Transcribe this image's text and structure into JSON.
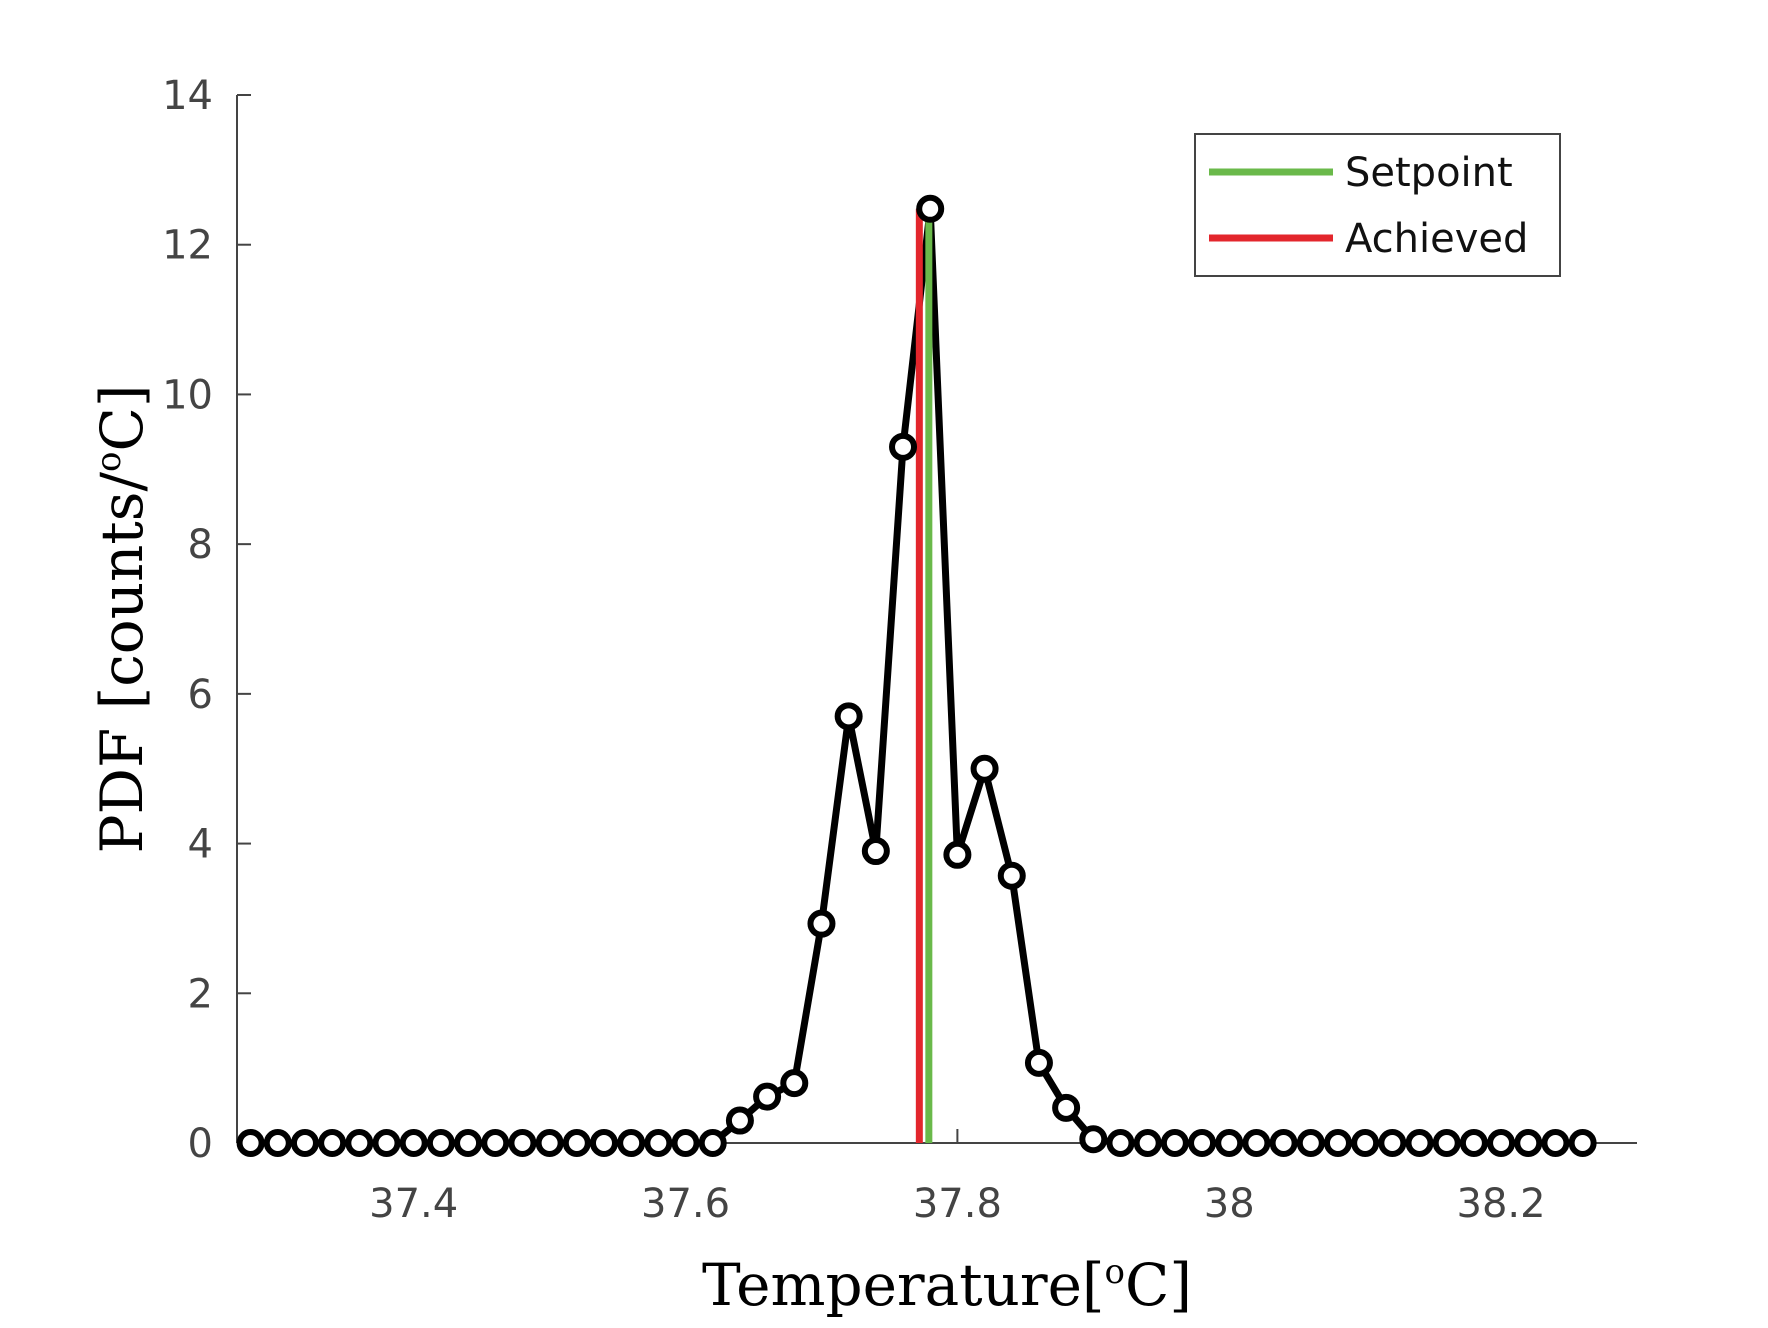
{
  "chart_data": {
    "type": "line",
    "xlabel": "Temperature[°C]",
    "xlabel_parts": {
      "pre": "Temperature[",
      "sup": "o",
      "post": "C]"
    },
    "ylabel": "PDF [counts/°C]",
    "ylabel_parts": {
      "pre": "PDF [counts/",
      "sup": "o",
      "post": "C]"
    },
    "xlim": [
      37.27,
      38.3
    ],
    "ylim": [
      0,
      14
    ],
    "xticks": [
      37.4,
      37.6,
      37.8,
      38.0,
      38.2
    ],
    "xtick_labels": [
      "37.4",
      "37.6",
      "37.8",
      "38",
      "38.2"
    ],
    "yticks": [
      0,
      2,
      4,
      6,
      8,
      10,
      12,
      14
    ],
    "ytick_labels": [
      "0",
      "2",
      "4",
      "6",
      "8",
      "10",
      "12",
      "14"
    ],
    "grid": false,
    "legend_placement": "top-right",
    "series": [
      {
        "style": "line-circle-markers",
        "color": "#000000",
        "x": [
          37.28,
          37.3,
          37.32,
          37.34,
          37.36,
          37.38,
          37.4,
          37.42,
          37.44,
          37.46,
          37.48,
          37.5,
          37.52,
          37.54,
          37.56,
          37.58,
          37.6,
          37.62,
          37.64,
          37.66,
          37.68,
          37.7,
          37.72,
          37.74,
          37.76,
          37.78,
          37.8,
          37.82,
          37.84,
          37.86,
          37.88,
          37.9,
          37.92,
          37.94,
          37.96,
          37.98,
          38.0,
          38.02,
          38.04,
          38.06,
          38.08,
          38.1,
          38.12,
          38.14,
          38.16,
          38.18,
          38.2,
          38.22,
          38.24,
          38.26
        ],
        "y": [
          0,
          0,
          0,
          0,
          0,
          0,
          0,
          0,
          0,
          0,
          0,
          0,
          0,
          0,
          0,
          0,
          0,
          0,
          0.3,
          0.62,
          0.8,
          2.93,
          5.7,
          3.9,
          9.3,
          12.48,
          3.85,
          5.0,
          3.57,
          1.07,
          0.47,
          0.05,
          0,
          0,
          0,
          0,
          0,
          0,
          0,
          0,
          0,
          0,
          0,
          0,
          0,
          0,
          0,
          0,
          0,
          0
        ]
      },
      {
        "name": "Setpoint",
        "style": "vertical-line",
        "color": "#6ab94a",
        "x": 37.779,
        "y": [
          0,
          12.48
        ]
      },
      {
        "name": "Achieved",
        "style": "vertical-line",
        "color": "#e3262c",
        "x": 37.772,
        "y": [
          0,
          12.48
        ]
      }
    ]
  }
}
